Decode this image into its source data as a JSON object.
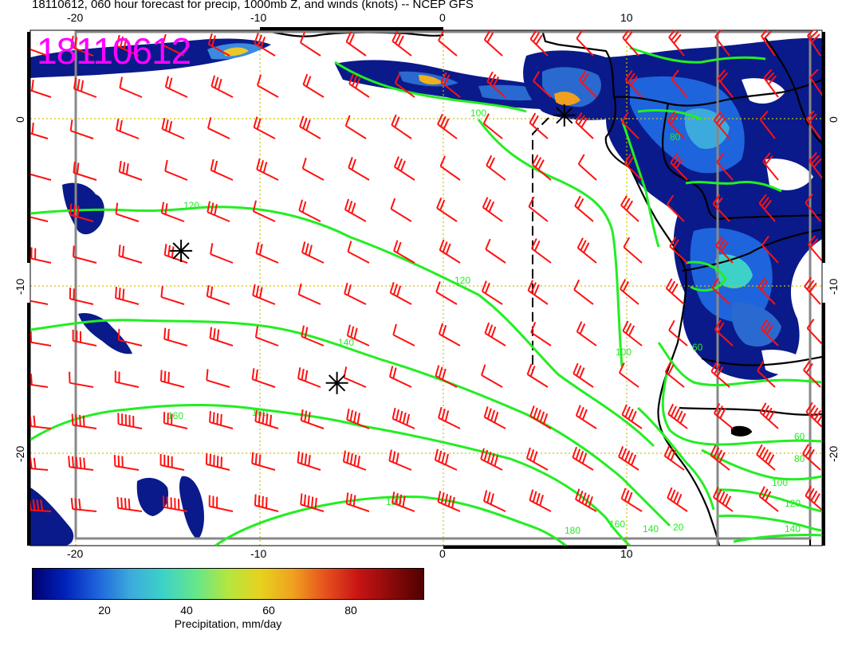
{
  "title": "18110612, 060 hour forecast for precip, 1000mb Z, and winds (knots) -- NCEP GFS",
  "stamp": {
    "text": "18110612",
    "color": "#ff00ff"
  },
  "axes": {
    "lon_ticks": [
      "-20",
      "-10",
      "0",
      "10"
    ],
    "lat_ticks": [
      "0",
      "-10",
      "-20"
    ]
  },
  "colors": {
    "contour": "#22ee22",
    "barb": "#ff1111",
    "coast": "#000000",
    "grid": "#d0c000",
    "frame": "#888888"
  },
  "contour_labels": [
    "100",
    "120",
    "140",
    "160",
    "160",
    "180",
    "180",
    "160",
    "140",
    "120",
    "100",
    "80",
    "60",
    "20",
    "140",
    "120",
    "100",
    "80",
    "60"
  ],
  "markers": [
    {
      "name": "marker-gulf",
      "lon": 6.6,
      "lat": 0.2
    },
    {
      "name": "marker-west",
      "lon": -14.3,
      "lat": -7.9
    },
    {
      "name": "marker-south",
      "lon": -5.8,
      "lat": -15.8
    }
  ],
  "colorbar": {
    "colors": [
      "#00006e",
      "#0022bb",
      "#1e64dc",
      "#3caadc",
      "#3cd2c8",
      "#64e68c",
      "#b4e640",
      "#e6d21e",
      "#f0a01e",
      "#e6501e",
      "#c81414",
      "#8c0a0a",
      "#500000"
    ],
    "ticks": [
      "20",
      "40",
      "60",
      "80"
    ],
    "label": "Precipitation, mm/day"
  }
}
